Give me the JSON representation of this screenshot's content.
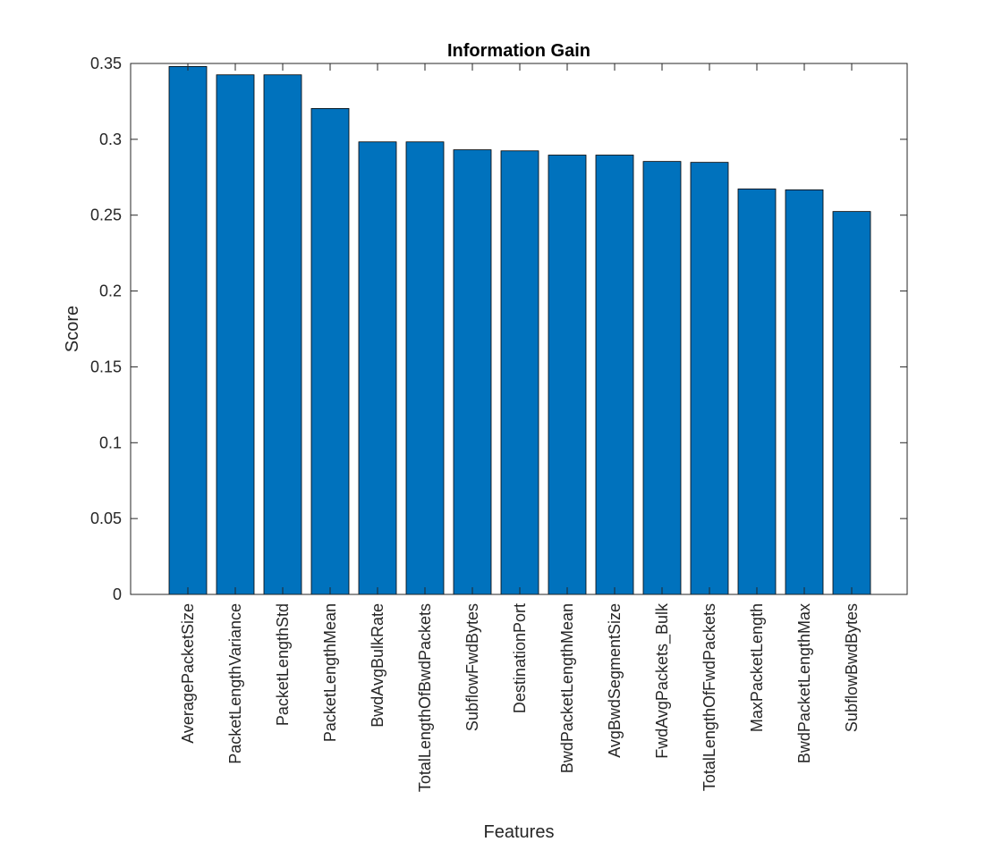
{
  "chart_data": {
    "type": "bar",
    "title": "Information Gain",
    "xlabel": "Features",
    "ylabel": "Score",
    "ylim": [
      0,
      0.35
    ],
    "yticks": [
      0,
      0.05,
      0.1,
      0.15,
      0.2,
      0.25,
      0.3,
      0.35
    ],
    "ytick_labels": [
      "0",
      "0.05",
      "0.1",
      "0.15",
      "0.2",
      "0.25",
      "0.3",
      "0.35"
    ],
    "categories": [
      "AveragePacketSize",
      "PacketLengthVariance",
      "PacketLengthStd",
      "PacketLengthMean",
      "BwdAvgBulkRate",
      "TotalLengthOfBwdPackets",
      "SubflowFwdBytes",
      "DestinationPort",
      "BwdPacketLengthMean",
      "AvgBwdSegmentSize",
      "FwdAvgPackets_Bulk",
      "TotalLengthOfFwdPackets",
      "MaxPacketLength",
      "BwdPacketLengthMax",
      "SubflowBwdBytes"
    ],
    "values": [
      0.348,
      0.3425,
      0.3425,
      0.3203,
      0.2983,
      0.2983,
      0.2931,
      0.2924,
      0.2896,
      0.2896,
      0.2854,
      0.2848,
      0.2673,
      0.2667,
      0.2524
    ],
    "bar_color": "#0072BD",
    "grid": false,
    "legend": "none"
  }
}
